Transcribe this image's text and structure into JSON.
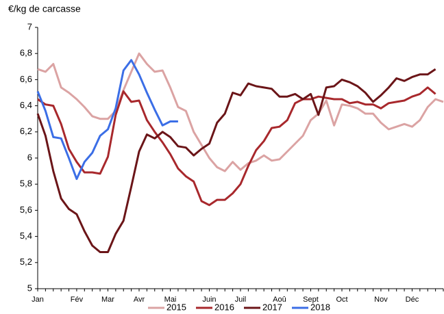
{
  "chart_data": {
    "type": "line",
    "y_label": "€/kg de carcasse",
    "categories": [
      "Jan",
      null,
      null,
      null,
      null,
      "Fév",
      null,
      null,
      null,
      "Mar",
      null,
      null,
      null,
      "Avr",
      null,
      null,
      null,
      "Mai",
      null,
      null,
      null,
      null,
      "Juin",
      null,
      null,
      null,
      "Juil",
      null,
      null,
      null,
      null,
      "Aoû",
      null,
      null,
      null,
      "Sept",
      null,
      null,
      null,
      "Oct",
      null,
      null,
      null,
      null,
      "Nov",
      null,
      null,
      null,
      "Déc",
      null,
      null,
      null,
      null
    ],
    "series": [
      {
        "name": "2015",
        "color": "#dba3a3",
        "values": [
          6.68,
          6.66,
          6.72,
          6.54,
          6.5,
          6.45,
          6.39,
          6.32,
          6.3,
          6.3,
          6.36,
          6.52,
          6.66,
          6.8,
          6.72,
          6.66,
          6.67,
          6.54,
          6.39,
          6.36,
          6.2,
          6.1,
          6.0,
          5.93,
          5.9,
          5.97,
          5.91,
          5.96,
          5.98,
          6.02,
          5.98,
          5.99,
          6.05,
          6.11,
          6.17,
          6.29,
          6.34,
          6.44,
          6.25,
          6.41,
          6.4,
          6.38,
          6.34,
          6.34,
          6.27,
          6.22,
          6.24,
          6.26,
          6.24,
          6.29,
          6.39,
          6.45,
          6.43
        ]
      },
      {
        "name": "2016",
        "color": "#a8282c",
        "values": [
          6.45,
          6.41,
          6.4,
          6.26,
          6.07,
          5.97,
          5.89,
          5.89,
          5.88,
          6.01,
          6.33,
          6.51,
          6.43,
          6.44,
          6.29,
          6.2,
          6.12,
          6.03,
          5.92,
          5.86,
          5.82,
          5.67,
          5.64,
          5.68,
          5.68,
          5.73,
          5.8,
          5.94,
          6.06,
          6.13,
          6.23,
          6.24,
          6.29,
          6.42,
          6.45,
          6.45,
          6.47,
          6.46,
          6.45,
          6.45,
          6.42,
          6.43,
          6.41,
          6.41,
          6.38,
          6.42,
          6.43,
          6.44,
          6.47,
          6.49,
          6.54,
          6.49,
          null
        ]
      },
      {
        "name": "2017",
        "color": "#6b1518",
        "values": [
          6.34,
          6.17,
          5.9,
          5.69,
          5.61,
          5.57,
          5.44,
          5.33,
          5.28,
          5.28,
          5.42,
          5.52,
          5.78,
          6.05,
          6.18,
          6.15,
          6.2,
          6.16,
          6.09,
          6.08,
          6.02,
          6.07,
          6.11,
          6.27,
          6.34,
          6.5,
          6.48,
          6.57,
          6.55,
          6.54,
          6.53,
          6.47,
          6.47,
          6.49,
          6.45,
          6.49,
          6.33,
          6.54,
          6.55,
          6.6,
          6.58,
          6.55,
          6.5,
          6.43,
          6.48,
          6.54,
          6.61,
          6.59,
          6.62,
          6.64,
          6.64,
          6.68,
          null
        ]
      },
      {
        "name": "2018",
        "color": "#3b6ee6",
        "values": [
          6.51,
          6.36,
          6.16,
          6.15,
          6.0,
          5.84,
          5.97,
          6.04,
          6.17,
          6.22,
          6.38,
          6.67,
          6.75,
          6.64,
          6.5,
          6.37,
          6.25,
          6.28,
          6.28,
          null,
          null,
          null,
          null,
          null,
          null,
          null,
          null,
          null,
          null,
          null,
          null,
          null,
          null,
          null,
          null,
          null,
          null,
          null,
          null,
          null,
          null,
          null,
          null,
          null,
          null,
          null,
          null,
          null,
          null,
          null,
          null,
          null,
          null
        ]
      }
    ],
    "ylim": [
      5,
      7
    ],
    "yticks": [
      5,
      {
        "value": 5.2,
        "label": "5,2"
      },
      {
        "value": 5.4,
        "label": "5,4"
      },
      {
        "value": 5.6,
        "label": "5,6"
      },
      {
        "value": 5.8,
        "label": "5,8"
      },
      6,
      {
        "value": 6.2,
        "label": "6,2"
      },
      {
        "value": 6.4,
        "label": "6,4"
      },
      {
        "value": 6.6,
        "label": "6,6"
      },
      {
        "value": 6.8,
        "label": "6,8"
      },
      7
    ],
    "grid": false,
    "legend": "bottom"
  }
}
